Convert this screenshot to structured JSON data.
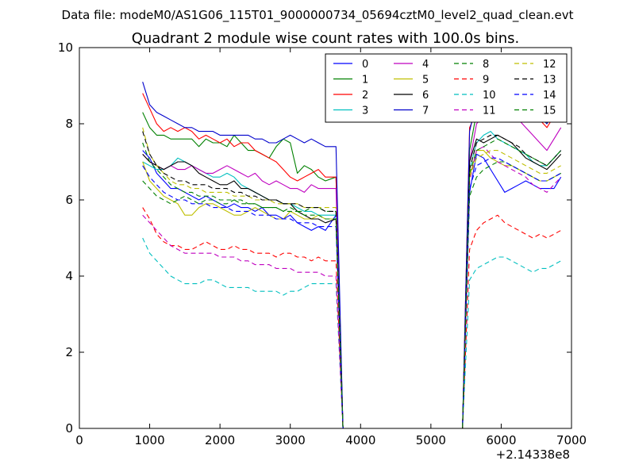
{
  "chart_data": {
    "type": "line",
    "suptitle": "Data file: modeM0/AS1G06_115T01_9000000734_05694cztM0_level2_quad_clean.evt",
    "title": "Quadrant 2 module wise count rates with 100.0s bins.",
    "xlabel": "",
    "ylabel": "",
    "x_offset_label": "+2.14338e8",
    "xlim": [
      0,
      7000
    ],
    "ylim": [
      0,
      10
    ],
    "x_ticks": [
      "0",
      "1000",
      "2000",
      "3000",
      "4000",
      "5000",
      "6000",
      "7000"
    ],
    "y_ticks": [
      "0",
      "2",
      "4",
      "6",
      "8",
      "10"
    ],
    "grid": false,
    "legend": {
      "placement": "top-right",
      "columns": 4
    },
    "segments": [
      {
        "x_start": 900,
        "x_end": 3550,
        "step": 100
      },
      {
        "x": [
          3650,
          3750
        ]
      },
      {
        "x_start": 5450,
        "x_end": 6850,
        "step": 100
      }
    ],
    "series": [
      {
        "name": "0",
        "color": "#0000ff",
        "dash": "solid",
        "seg1": [
          7.3,
          7.1,
          6.7,
          6.5,
          6.3,
          6.3,
          6.2,
          6.1,
          6.0,
          6.1,
          6.0,
          5.9,
          5.8,
          5.9,
          5.8,
          5.8,
          5.7,
          5.8,
          5.6,
          5.6,
          5.5,
          5.6,
          5.4,
          5.3,
          5.2,
          5.3,
          5.2
        ],
        "tail": [
          5.6,
          0.0
        ],
        "seg3": [
          0.0,
          6.2,
          7.2,
          7.1,
          6.8,
          6.5,
          6.2,
          6.3,
          6.4,
          6.5,
          6.4,
          6.3,
          6.3,
          6.3,
          6.6
        ]
      },
      {
        "name": "1",
        "color": "#008000",
        "dash": "solid",
        "seg1": [
          8.3,
          7.9,
          7.7,
          7.7,
          7.6,
          7.6,
          7.6,
          7.6,
          7.4,
          7.6,
          7.5,
          7.5,
          7.4,
          7.7,
          7.5,
          7.3,
          7.3,
          7.2,
          7.1,
          7.4,
          7.6,
          7.5,
          6.7,
          6.9,
          6.8,
          6.6,
          6.5
        ],
        "tail": [
          6.6,
          0.0
        ],
        "seg3": [
          0.0,
          7.3,
          8.3,
          8.5,
          8.6,
          8.9,
          9.4,
          9.1,
          8.9,
          8.6,
          8.4,
          8.2,
          8.0,
          8.3,
          8.5
        ]
      },
      {
        "name": "2",
        "color": "#ff0000",
        "dash": "solid",
        "seg1": [
          8.8,
          8.4,
          8.0,
          7.8,
          7.9,
          7.8,
          7.9,
          7.8,
          7.6,
          7.7,
          7.6,
          7.5,
          7.6,
          7.4,
          7.5,
          7.5,
          7.3,
          7.2,
          7.1,
          7.0,
          6.8,
          6.6,
          6.5,
          6.6,
          6.7,
          6.8,
          6.6
        ],
        "tail": [
          6.6,
          0.0
        ],
        "seg3": [
          0.0,
          7.9,
          8.3,
          8.6,
          8.9,
          9.2,
          9.3,
          9.1,
          8.8,
          8.6,
          8.3,
          8.1,
          7.9,
          8.2,
          8.4
        ]
      },
      {
        "name": "3",
        "color": "#00bfbf",
        "dash": "solid",
        "seg1": [
          7.0,
          6.9,
          6.8,
          6.8,
          6.9,
          7.1,
          7.0,
          6.9,
          6.8,
          6.7,
          6.6,
          6.6,
          6.7,
          6.6,
          6.4,
          6.3,
          6.2,
          6.1,
          6.0,
          6.0,
          5.9,
          5.9,
          5.8,
          5.7,
          5.7,
          5.6,
          5.6
        ],
        "tail": [
          5.6,
          0.0
        ],
        "seg3": [
          0.0,
          6.8,
          7.5,
          7.7,
          7.8,
          7.6,
          7.5,
          7.4,
          7.3,
          7.2,
          7.0,
          6.9,
          6.9,
          7.1,
          7.3
        ]
      },
      {
        "name": "4",
        "color": "#bf00bf",
        "dash": "solid",
        "seg1": [
          7.2,
          7.0,
          6.9,
          6.8,
          6.9,
          6.8,
          6.8,
          6.9,
          6.8,
          6.7,
          6.7,
          6.8,
          6.9,
          6.8,
          6.7,
          6.6,
          6.7,
          6.5,
          6.4,
          6.5,
          6.4,
          6.3,
          6.3,
          6.2,
          6.4,
          6.3,
          6.3
        ],
        "tail": [
          6.3,
          0.0
        ],
        "seg3": [
          0.0,
          7.0,
          8.0,
          8.2,
          8.4,
          8.6,
          8.5,
          8.3,
          8.1,
          7.9,
          7.7,
          7.5,
          7.3,
          7.6,
          7.9
        ]
      },
      {
        "name": "5",
        "color": "#bfbf00",
        "dash": "solid",
        "seg1": [
          7.0,
          6.5,
          6.3,
          6.1,
          6.0,
          5.9,
          5.6,
          5.6,
          5.8,
          5.9,
          5.9,
          5.8,
          5.7,
          5.6,
          5.6,
          5.7,
          5.8,
          5.7,
          5.6,
          5.5,
          5.5,
          5.7,
          5.6,
          5.5,
          5.5,
          5.6,
          5.5
        ],
        "tail": [
          5.5,
          0.0
        ],
        "seg3": [
          0.0,
          6.6,
          7.3,
          7.3,
          7.1,
          7.0,
          6.9,
          6.9,
          6.8,
          6.7,
          6.6,
          6.5,
          6.5,
          6.6,
          6.7
        ]
      },
      {
        "name": "6",
        "color": "#000000",
        "dash": "solid",
        "seg1": [
          7.2,
          7.0,
          6.9,
          6.8,
          6.9,
          7.0,
          7.0,
          6.9,
          6.7,
          6.6,
          6.5,
          6.4,
          6.4,
          6.5,
          6.3,
          6.3,
          6.2,
          6.1,
          6.0,
          6.0,
          5.9,
          5.9,
          5.7,
          5.6,
          5.5,
          5.5,
          5.4
        ],
        "tail": [
          5.5,
          0.0
        ],
        "seg3": [
          0.0,
          7.0,
          7.6,
          7.5,
          7.6,
          7.7,
          7.6,
          7.5,
          7.3,
          7.1,
          7.0,
          6.9,
          6.8,
          7.0,
          7.2
        ]
      },
      {
        "name": "7",
        "color": "#0000cc",
        "dash": "solid",
        "seg1": [
          9.1,
          8.5,
          8.3,
          8.2,
          8.1,
          8.0,
          7.9,
          7.9,
          7.8,
          7.8,
          7.8,
          7.7,
          7.7,
          7.7,
          7.7,
          7.7,
          7.6,
          7.6,
          7.5,
          7.5,
          7.6,
          7.7,
          7.6,
          7.5,
          7.6,
          7.5,
          7.4
        ],
        "tail": [
          7.4,
          0.0
        ],
        "seg3": [
          0.0,
          7.8,
          8.6,
          8.8,
          9.2,
          9.6,
          9.7,
          9.3,
          9.0,
          8.7,
          8.4,
          8.2,
          8.0,
          8.3,
          8.6
        ]
      },
      {
        "name": "8",
        "color": "#008000",
        "dash": "dashed",
        "seg1": [
          6.5,
          6.3,
          6.1,
          6.0,
          5.9,
          6.0,
          6.1,
          6.0,
          5.9,
          6.0,
          6.0,
          5.9,
          5.9,
          6.0,
          6.0,
          5.9,
          5.9,
          5.8,
          5.8,
          5.8,
          5.7,
          5.8,
          5.7,
          5.7,
          5.8,
          5.8,
          5.7
        ],
        "tail": [
          5.7,
          0.0
        ],
        "seg3": [
          0.0,
          6.1,
          6.6,
          6.8,
          6.9,
          7.0,
          7.0,
          6.9,
          6.8,
          6.7,
          6.6,
          6.5,
          6.5,
          6.6,
          6.7
        ]
      },
      {
        "name": "9",
        "color": "#ff0000",
        "dash": "dashed",
        "seg1": [
          5.8,
          5.5,
          5.1,
          4.9,
          4.8,
          4.8,
          4.7,
          4.7,
          4.8,
          4.9,
          4.8,
          4.7,
          4.7,
          4.8,
          4.7,
          4.7,
          4.6,
          4.6,
          4.6,
          4.5,
          4.6,
          4.6,
          4.5,
          4.5,
          4.4,
          4.5,
          4.4
        ],
        "tail": [
          4.4,
          0.0
        ],
        "seg3": [
          0.0,
          4.7,
          5.2,
          5.4,
          5.5,
          5.6,
          5.4,
          5.3,
          5.2,
          5.1,
          5.0,
          5.1,
          5.0,
          5.1,
          5.2
        ]
      },
      {
        "name": "10",
        "color": "#00bfbf",
        "dash": "dashed",
        "seg1": [
          5.0,
          4.6,
          4.4,
          4.2,
          4.0,
          3.9,
          3.8,
          3.8,
          3.8,
          3.9,
          3.9,
          3.8,
          3.7,
          3.7,
          3.7,
          3.7,
          3.6,
          3.6,
          3.6,
          3.6,
          3.5,
          3.6,
          3.6,
          3.7,
          3.8,
          3.8,
          3.8
        ],
        "tail": [
          3.8,
          0.0
        ],
        "seg3": [
          0.0,
          3.9,
          4.2,
          4.3,
          4.4,
          4.5,
          4.5,
          4.4,
          4.3,
          4.2,
          4.1,
          4.2,
          4.2,
          4.3,
          4.4
        ]
      },
      {
        "name": "11",
        "color": "#bf00bf",
        "dash": "dashed",
        "seg1": [
          5.6,
          5.4,
          5.2,
          5.0,
          4.8,
          4.7,
          4.6,
          4.6,
          4.6,
          4.6,
          4.6,
          4.5,
          4.5,
          4.5,
          4.4,
          4.4,
          4.3,
          4.3,
          4.3,
          4.2,
          4.2,
          4.2,
          4.1,
          4.1,
          4.1,
          4.1,
          4.0
        ],
        "tail": [
          4.0,
          0.0
        ],
        "seg3": [
          0.0,
          6.5,
          7.3,
          7.4,
          7.2,
          7.0,
          6.9,
          6.8,
          6.7,
          6.6,
          6.4,
          6.3,
          6.2,
          6.4,
          6.6
        ]
      },
      {
        "name": "12",
        "color": "#bfbf00",
        "dash": "dashed",
        "seg1": [
          7.9,
          7.2,
          6.9,
          6.7,
          6.5,
          6.4,
          6.4,
          6.3,
          6.3,
          6.2,
          6.2,
          6.2,
          6.2,
          6.1,
          6.1,
          6.1,
          6.0,
          6.0,
          6.0,
          5.9,
          5.9,
          5.9,
          5.9,
          5.8,
          5.8,
          5.8,
          5.8
        ],
        "tail": [
          5.8,
          0.0
        ],
        "seg3": [
          0.0,
          6.6,
          7.1,
          7.2,
          7.3,
          7.3,
          7.2,
          7.1,
          7.0,
          6.9,
          6.8,
          6.7,
          6.7,
          6.8,
          6.9
        ]
      },
      {
        "name": "13",
        "color": "#000000",
        "dash": "dashed",
        "seg1": [
          7.8,
          7.2,
          6.9,
          6.7,
          6.6,
          6.5,
          6.5,
          6.4,
          6.4,
          6.4,
          6.3,
          6.3,
          6.3,
          6.2,
          6.2,
          6.1,
          6.1,
          6.0,
          6.0,
          6.0,
          5.9,
          5.9,
          5.9,
          5.8,
          5.8,
          5.8,
          5.7
        ],
        "tail": [
          5.7,
          0.0
        ],
        "seg3": [
          0.0,
          6.8,
          7.5,
          7.6,
          7.7,
          7.7,
          7.6,
          7.5,
          7.4,
          7.2,
          7.1,
          7.0,
          6.9,
          7.1,
          7.3
        ]
      },
      {
        "name": "14",
        "color": "#0000ff",
        "dash": "dashed",
        "seg1": [
          6.9,
          6.6,
          6.4,
          6.2,
          6.1,
          6.0,
          6.0,
          5.9,
          5.9,
          5.9,
          5.8,
          5.8,
          5.8,
          5.7,
          5.7,
          5.7,
          5.6,
          5.6,
          5.6,
          5.5,
          5.5,
          5.5,
          5.4,
          5.4,
          5.4,
          5.3,
          5.3
        ],
        "tail": [
          5.3,
          0.0
        ],
        "seg3": [
          0.0,
          6.3,
          6.9,
          7.0,
          7.1,
          7.1,
          7.0,
          6.9,
          6.8,
          6.7,
          6.6,
          6.5,
          6.5,
          6.6,
          6.7
        ]
      },
      {
        "name": "15",
        "color": "#008000",
        "dash": "dashed",
        "seg1": [
          7.5,
          7.0,
          6.8,
          6.6,
          6.4,
          6.3,
          6.2,
          6.2,
          6.1,
          6.1,
          6.1,
          6.0,
          6.0,
          6.0,
          5.9,
          5.9,
          5.9,
          5.8,
          5.8,
          5.8,
          5.7,
          5.7,
          5.7,
          5.6,
          5.6,
          5.6,
          5.5
        ],
        "tail": [
          5.5,
          0.0
        ],
        "seg3": [
          0.0,
          6.7,
          7.3,
          7.4,
          7.5,
          7.6,
          7.5,
          7.4,
          7.3,
          7.2,
          7.1,
          7.0,
          6.9,
          7.1,
          7.3
        ]
      }
    ]
  }
}
